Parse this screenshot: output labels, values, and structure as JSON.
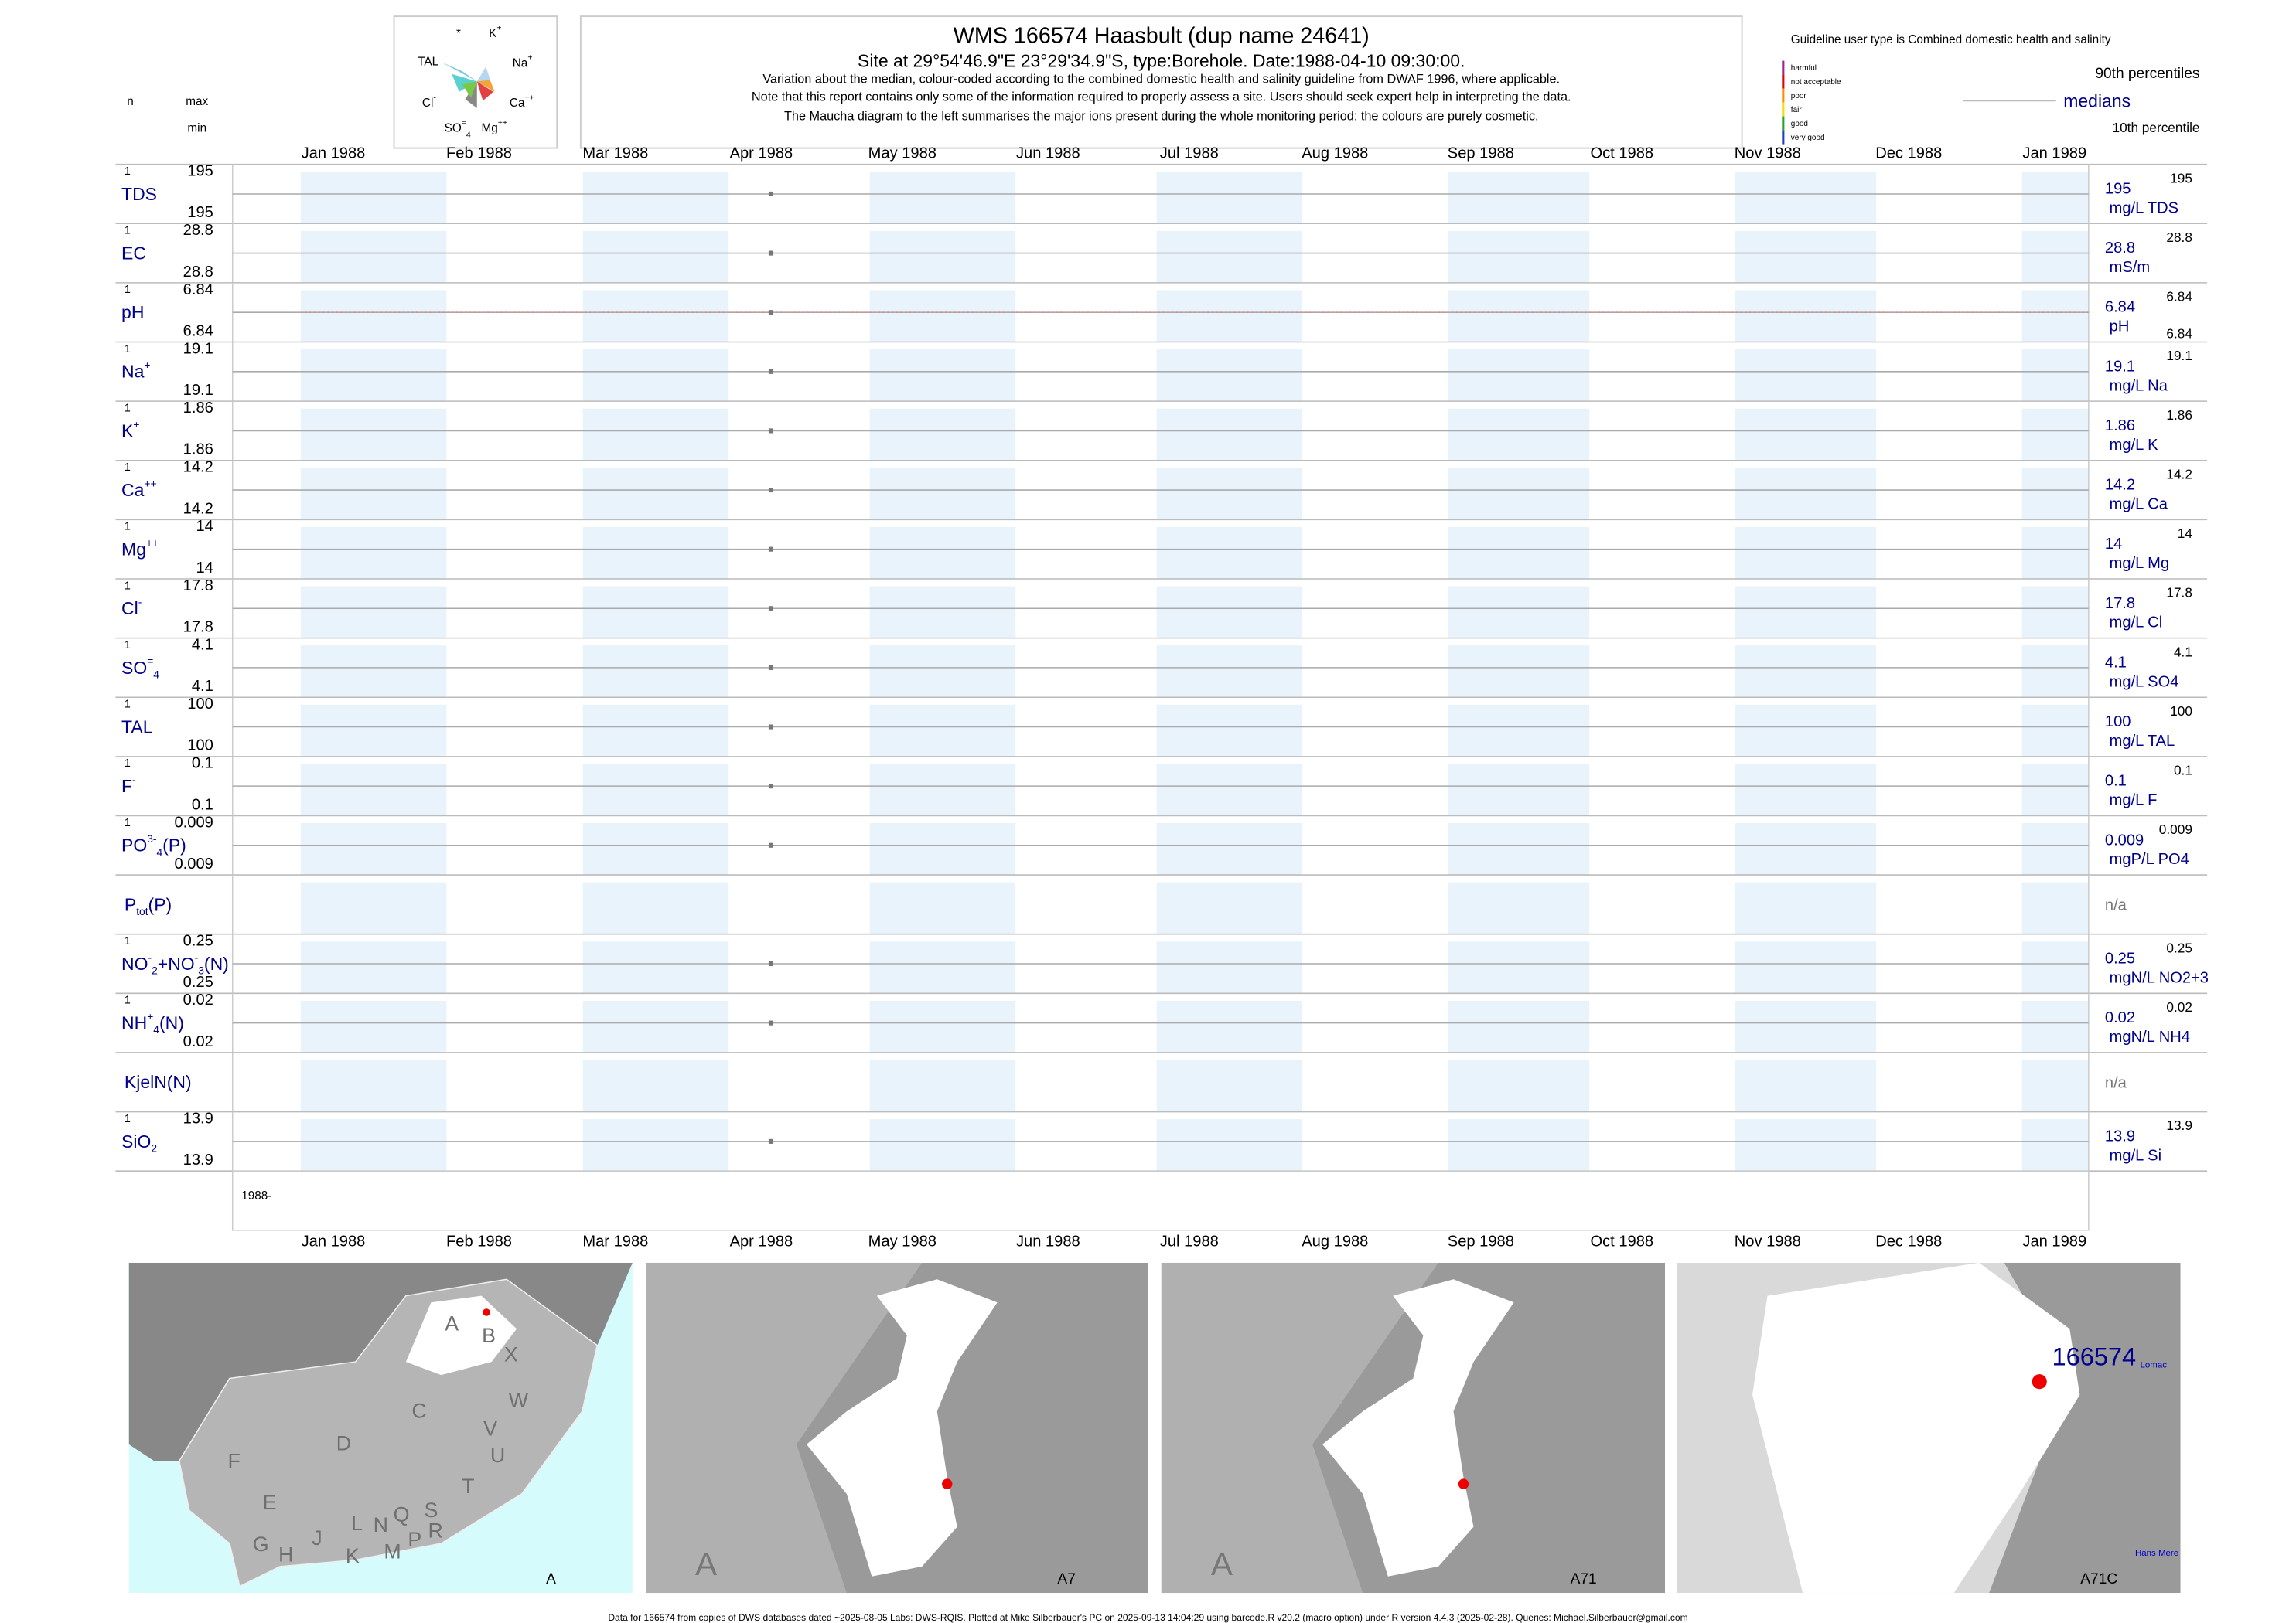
{
  "header": {
    "title": "WMS 166574  Haasbult (dup name 24641)",
    "subtitle": "Site at 29°54'46.9\"E 23°29'34.9\"S, type:Borehole. Date:1988-04-10 09:30:00.",
    "notes": [
      "Variation about the median,  colour-coded according to the combined domestic health and salinity guideline from DWAF 1996, where applicable.",
      "Note that this report contains only some of the information required to properly assess a site. Users should seek expert help in interpreting the data.",
      "The Maucha diagram to the left summarises the major ions present during the whole monitoring period: the colours are purely cosmetic."
    ]
  },
  "maucha": [
    {
      "text": "*"
    },
    {
      "text": "K",
      "sup": "+"
    },
    {
      "text": "TAL"
    },
    {
      "text": "Na",
      "sup": "+"
    },
    {
      "text": "Cl",
      "sup": "-"
    },
    {
      "text": "Ca",
      "sup": "++"
    },
    {
      "text": "SO",
      "sup": "=",
      "sub": "4"
    },
    {
      "text": "Mg",
      "sup": "++"
    }
  ],
  "left_header": {
    "n": "n",
    "max": "max",
    "min": "min"
  },
  "guideline": {
    "title": "Guideline user type is Combined domestic health and salinity",
    "classes": [
      "harmful",
      "not acceptable",
      "poor",
      "fair",
      "good",
      "very good"
    ],
    "p90": "90th percentiles",
    "median": "medians",
    "p10": "10th percentile"
  },
  "months": [
    "Jan 1988",
    "Feb 1988",
    "Mar 1988",
    "Apr 1988",
    "May 1988",
    "Jun 1988",
    "Jul 1988",
    "Aug 1988",
    "Sep 1988",
    "Oct 1988",
    "Nov 1988",
    "Dec 1988",
    "Jan 1989"
  ],
  "rows": [
    {
      "parts": [
        {
          "text": "TDS"
        }
      ],
      "n": 1,
      "max": 195,
      "min": 195,
      "median": 195,
      "unit": "mg/L TDS",
      "p90": 195
    },
    {
      "parts": [
        {
          "text": "EC"
        }
      ],
      "n": 1,
      "max": 28.8,
      "min": 28.8,
      "median": 28.8,
      "unit": "mS/m",
      "p90": 28.8
    },
    {
      "parts": [
        {
          "text": "pH"
        }
      ],
      "n": 1,
      "max": 6.84,
      "min": 6.84,
      "median": 6.84,
      "unit": "pH",
      "p90": 6.84,
      "p10": 6.84
    },
    {
      "parts": [
        {
          "text": "Na",
          "sup": "+"
        }
      ],
      "n": 1,
      "max": 19.1,
      "min": 19.1,
      "median": 19.1,
      "unit": "mg/L Na",
      "p90": 19.1
    },
    {
      "parts": [
        {
          "text": "K",
          "sup": "+"
        }
      ],
      "n": 1,
      "max": 1.86,
      "min": 1.86,
      "median": 1.86,
      "unit": "mg/L K",
      "p90": 1.86
    },
    {
      "parts": [
        {
          "text": "Ca",
          "sup": "++"
        }
      ],
      "n": 1,
      "max": 14.2,
      "min": 14.2,
      "median": 14.2,
      "unit": "mg/L Ca",
      "p90": 14.2
    },
    {
      "parts": [
        {
          "text": "Mg",
          "sup": "++"
        }
      ],
      "n": 1,
      "max": 14,
      "min": 14,
      "median": 14,
      "unit": "mg/L Mg",
      "p90": 14
    },
    {
      "parts": [
        {
          "text": "Cl",
          "sup": "-"
        }
      ],
      "n": 1,
      "max": 17.8,
      "min": 17.8,
      "median": 17.8,
      "unit": "mg/L Cl",
      "p90": 17.8
    },
    {
      "parts": [
        {
          "text": "SO",
          "sup": "=",
          "sub": "4"
        }
      ],
      "n": 1,
      "max": 4.1,
      "min": 4.1,
      "median": 4.1,
      "unit": "mg/L SO4",
      "p90": 4.1
    },
    {
      "parts": [
        {
          "text": "TAL"
        }
      ],
      "n": 1,
      "max": 100,
      "min": 100,
      "median": 100,
      "unit": "mg/L TAL",
      "p90": 100
    },
    {
      "parts": [
        {
          "text": "F",
          "sup": "-"
        }
      ],
      "n": 1,
      "max": 0.1,
      "min": 0.1,
      "median": 0.1,
      "unit": "mg/L F",
      "p90": 0.1
    },
    {
      "parts": [
        {
          "text": "PO",
          "sup": "3-",
          "sub": "4"
        },
        {
          "text": "(P)"
        }
      ],
      "n": 1,
      "max": 0.009,
      "min": 0.009,
      "median": 0.009,
      "unit": "mgP/L PO4",
      "p90": 0.009
    },
    {
      "parts": [
        {
          "text": "P",
          "sub": "tot"
        },
        {
          "text": "(P)"
        }
      ],
      "na": "n/a"
    },
    {
      "parts": [
        {
          "text": "NO",
          "sup": "-",
          "sub": "2"
        },
        {
          "text": "+NO",
          "sup": "-",
          "sub": "3"
        },
        {
          "text": "(N)"
        }
      ],
      "n": 1,
      "max": 0.25,
      "min": 0.25,
      "median": 0.25,
      "unit": "mgN/L NO2+3",
      "p90": 0.25
    },
    {
      "parts": [
        {
          "text": "NH",
          "sup": "+",
          "sub": "4"
        },
        {
          "text": "(N)"
        }
      ],
      "n": 1,
      "max": 0.02,
      "min": 0.02,
      "median": 0.02,
      "unit": "mgN/L NH4",
      "p90": 0.02
    },
    {
      "parts": [
        {
          "text": "KjelN(N)"
        }
      ],
      "na": "n/a"
    },
    {
      "parts": [
        {
          "text": "SiO",
          "sub": "2"
        }
      ],
      "n": 1,
      "max": 13.9,
      "min": 13.9,
      "median": 13.9,
      "unit": "mg/L Si",
      "p90": 13.9
    }
  ],
  "year_label": "1988-",
  "maps": [
    {
      "label": "A",
      "regions": [
        "A",
        "B",
        "X",
        "C",
        "W",
        "D",
        "V",
        "U",
        "F",
        "T",
        "E",
        "S",
        "R",
        "Q",
        "N",
        "L",
        "M",
        "K",
        "J",
        "H",
        "G",
        "P"
      ]
    },
    {
      "label": "A7",
      "big": "A"
    },
    {
      "label": "A71",
      "big": "A"
    },
    {
      "label": "A71C",
      "site": "166574",
      "places": [
        "Lomac",
        "Hans Mere"
      ]
    }
  ],
  "footer": "Data for 166574 from copies of DWS databases dated ~2025-08-05 Labs: DWS-RQIS. Plotted at Mike Silberbauer's PC on 2025-09-13 14:04:29 using barcode.R v20.2 (macro option) under R version 4.4.3 (2025-02-28). Queries: Michael.Silberbauer@gmail.com"
}
